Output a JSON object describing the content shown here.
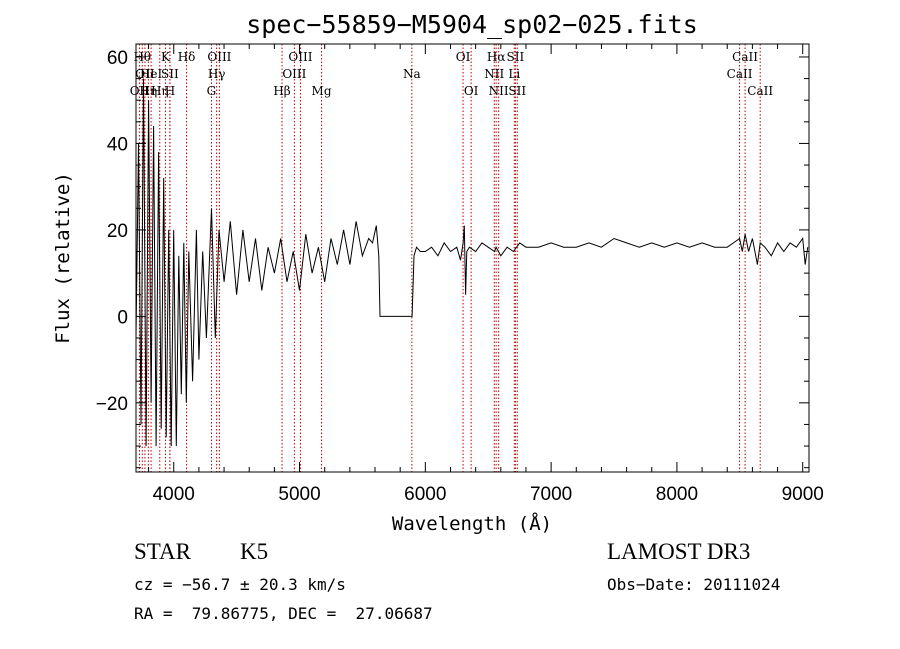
{
  "chart_data": {
    "type": "line",
    "title": "spec−55859−M5904_sp02−025.fits",
    "xlabel": "Wavelength (Å)",
    "ylabel": "Flux (relative)",
    "xlim": [
      3700,
      9050
    ],
    "ylim": [
      -36,
      63
    ],
    "xticks": [
      4000,
      5000,
      6000,
      7000,
      8000,
      9000
    ],
    "xtick_labels": [
      "4000",
      "5000",
      "6000",
      "7000",
      "8000",
      "9000"
    ],
    "yticks": [
      -20,
      0,
      20,
      40,
      60
    ],
    "ytick_labels": [
      "−20",
      "0",
      "20",
      "40",
      "60"
    ],
    "grid": false,
    "series": [
      {
        "name": "flux",
        "x": [
          3700,
          3720,
          3740,
          3760,
          3780,
          3800,
          3820,
          3840,
          3860,
          3880,
          3900,
          3920,
          3940,
          3960,
          3980,
          4000,
          4020,
          4040,
          4060,
          4080,
          4100,
          4120,
          4150,
          4180,
          4200,
          4230,
          4260,
          4300,
          4330,
          4360,
          4400,
          4450,
          4500,
          4550,
          4600,
          4650,
          4700,
          4750,
          4800,
          4850,
          4900,
          4950,
          5000,
          5050,
          5100,
          5150,
          5200,
          5250,
          5300,
          5350,
          5400,
          5450,
          5500,
          5550,
          5580,
          5610,
          5630,
          5640,
          5660,
          5700,
          5750,
          5800,
          5850,
          5880,
          5895,
          5910,
          5930,
          5960,
          6000,
          6050,
          6100,
          6150,
          6200,
          6250,
          6280,
          6300,
          6310,
          6320,
          6330,
          6350,
          6400,
          6450,
          6500,
          6550,
          6563,
          6600,
          6650,
          6700,
          6750,
          6800,
          6900,
          7000,
          7100,
          7200,
          7300,
          7400,
          7500,
          7600,
          7700,
          7800,
          7900,
          8000,
          8100,
          8200,
          8300,
          8400,
          8450,
          8498,
          8520,
          8542,
          8570,
          8600,
          8640,
          8662,
          8700,
          8750,
          8800,
          8850,
          8900,
          8950,
          9000,
          9020,
          9040
        ],
        "y": [
          -5,
          40,
          -25,
          55,
          -30,
          50,
          -20,
          44,
          -30,
          38,
          -26,
          32,
          -28,
          20,
          -30,
          20,
          -30,
          14,
          -18,
          17,
          -20,
          15,
          -15,
          20,
          -10,
          15,
          -5,
          25,
          -5,
          20,
          8,
          22,
          5,
          20,
          8,
          18,
          6,
          16,
          10,
          18,
          8,
          15,
          6,
          19,
          10,
          16,
          8,
          18,
          12,
          20,
          12,
          22,
          14,
          18,
          17,
          21,
          14,
          0,
          0,
          0,
          0,
          0,
          0,
          0,
          0,
          14,
          16,
          15,
          15,
          16,
          14,
          17,
          15,
          16,
          13,
          17,
          21,
          5,
          15,
          16,
          15,
          17,
          16,
          15,
          16,
          14,
          16,
          15,
          17,
          16,
          16,
          17,
          16,
          16,
          17,
          16,
          18,
          17,
          16,
          17,
          16,
          17,
          16,
          17,
          16,
          16,
          17,
          18,
          15,
          19,
          15,
          18,
          12,
          17,
          16,
          14,
          17,
          15,
          17,
          16,
          18,
          12,
          16
        ]
      }
    ],
    "line_markers": [
      {
        "x": 3727,
        "label": "OII",
        "row": 2
      },
      {
        "x": 3750,
        "label": "Hθ",
        "row": 0
      },
      {
        "x": 3771,
        "label": "OII",
        "row": 1
      },
      {
        "x": 3798,
        "label": "Hη",
        "row": 2
      },
      {
        "x": 3820,
        "label": "HeI",
        "row": 1
      },
      {
        "x": 3889,
        "label": "Hη",
        "row": 2
      },
      {
        "x": 3934,
        "label": "K",
        "row": 0
      },
      {
        "x": 3969,
        "label": "SII",
        "row": 1
      },
      {
        "x": 3970,
        "label": "H",
        "row": 2
      },
      {
        "x": 4102,
        "label": "Hδ",
        "row": 0
      },
      {
        "x": 4300,
        "label": "G",
        "row": 2
      },
      {
        "x": 4341,
        "label": "Hγ",
        "row": 1
      },
      {
        "x": 4363,
        "label": "OIII",
        "row": 0
      },
      {
        "x": 4861,
        "label": "Hβ",
        "row": 2
      },
      {
        "x": 4959,
        "label": "OIII",
        "row": 1
      },
      {
        "x": 5007,
        "label": "OIII",
        "row": 0
      },
      {
        "x": 5175,
        "label": "Mg",
        "row": 2
      },
      {
        "x": 5893,
        "label": "Na",
        "row": 1
      },
      {
        "x": 6300,
        "label": "OI",
        "row": 0
      },
      {
        "x": 6364,
        "label": "OI",
        "row": 2
      },
      {
        "x": 6548,
        "label": "NII",
        "row": 1
      },
      {
        "x": 6563,
        "label": "Hα",
        "row": 0
      },
      {
        "x": 6583,
        "label": "NII",
        "row": 2
      },
      {
        "x": 6707,
        "label": "Li",
        "row": 1
      },
      {
        "x": 6716,
        "label": "SII",
        "row": 0
      },
      {
        "x": 6731,
        "label": "SII",
        "row": 2
      },
      {
        "x": 8498,
        "label": "CaII",
        "row": 1
      },
      {
        "x": 8542,
        "label": "CaII",
        "row": 0
      },
      {
        "x": 8662,
        "label": "CaII",
        "row": 2
      }
    ]
  },
  "info": {
    "object_class": "STAR",
    "subclass": "K5",
    "survey": "LAMOST DR3",
    "redshift": "cz = −56.7 ± 20.3 km/s",
    "obs_date": "Obs−Date: 20111024",
    "coords": "RA =  79.86775, DEC =  27.06687"
  }
}
